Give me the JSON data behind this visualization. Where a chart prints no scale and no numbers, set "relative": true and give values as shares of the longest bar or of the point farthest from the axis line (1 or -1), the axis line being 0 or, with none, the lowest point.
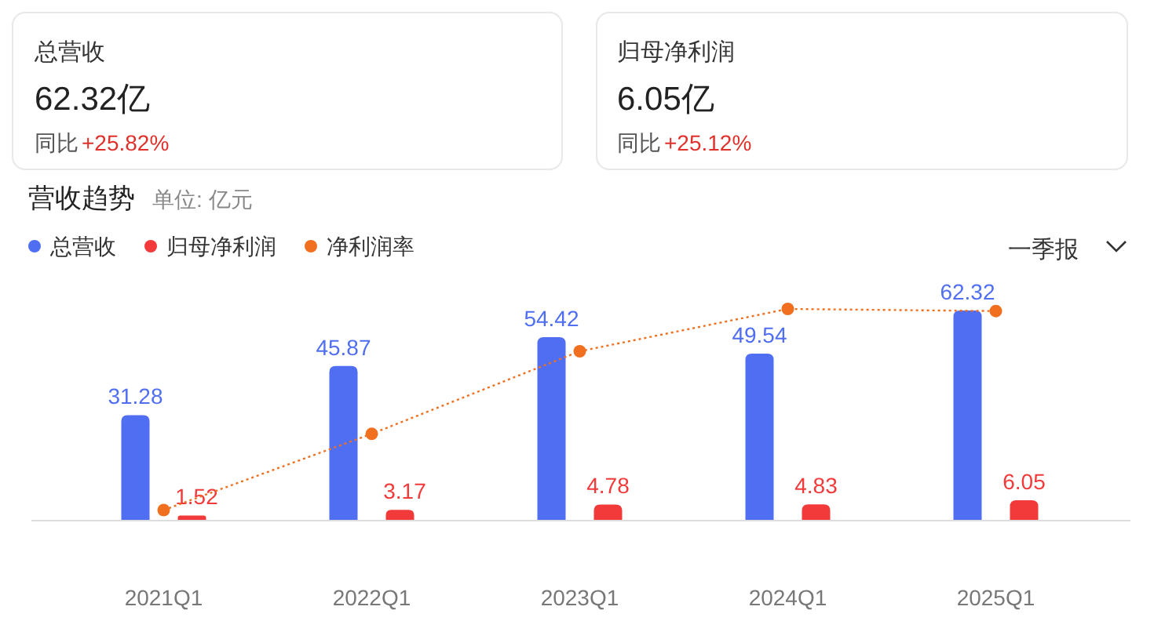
{
  "chart_data": [
    {
      "type": "bar",
      "title": "营收趋势",
      "subtitle": "单位: 亿元",
      "categories": [
        "2021Q1",
        "2022Q1",
        "2023Q1",
        "2024Q1",
        "2025Q1"
      ],
      "series": [
        {
          "name": "总营收",
          "color": "#4f6ef2",
          "values": [
            31.28,
            45.87,
            54.42,
            49.54,
            62.32
          ]
        },
        {
          "name": "归母净利润",
          "color": "#f23a3a",
          "values": [
            1.52,
            3.17,
            4.78,
            4.83,
            6.05
          ]
        }
      ],
      "tick_labels": "x",
      "data_labels": true,
      "legend": "top left",
      "annotations": [
        "总营收",
        "62.32亿",
        "同比",
        "+25.82%",
        "归母净利润",
        "6.05亿",
        "同比",
        "+25.12%",
        "一季报"
      ]
    },
    {
      "type": "line",
      "categories": [
        null,
        null,
        null,
        null,
        null
      ],
      "series": [
        {
          "name": "净利润率",
          "color": "#f07020",
          "values": [
            0.05,
            0.41,
            0.8,
            1,
            0.99
          ]
        }
      ],
      "relative": true,
      "legend": "top left",
      "marker": "circle",
      "line_style": "dotted"
    }
  ]
}
